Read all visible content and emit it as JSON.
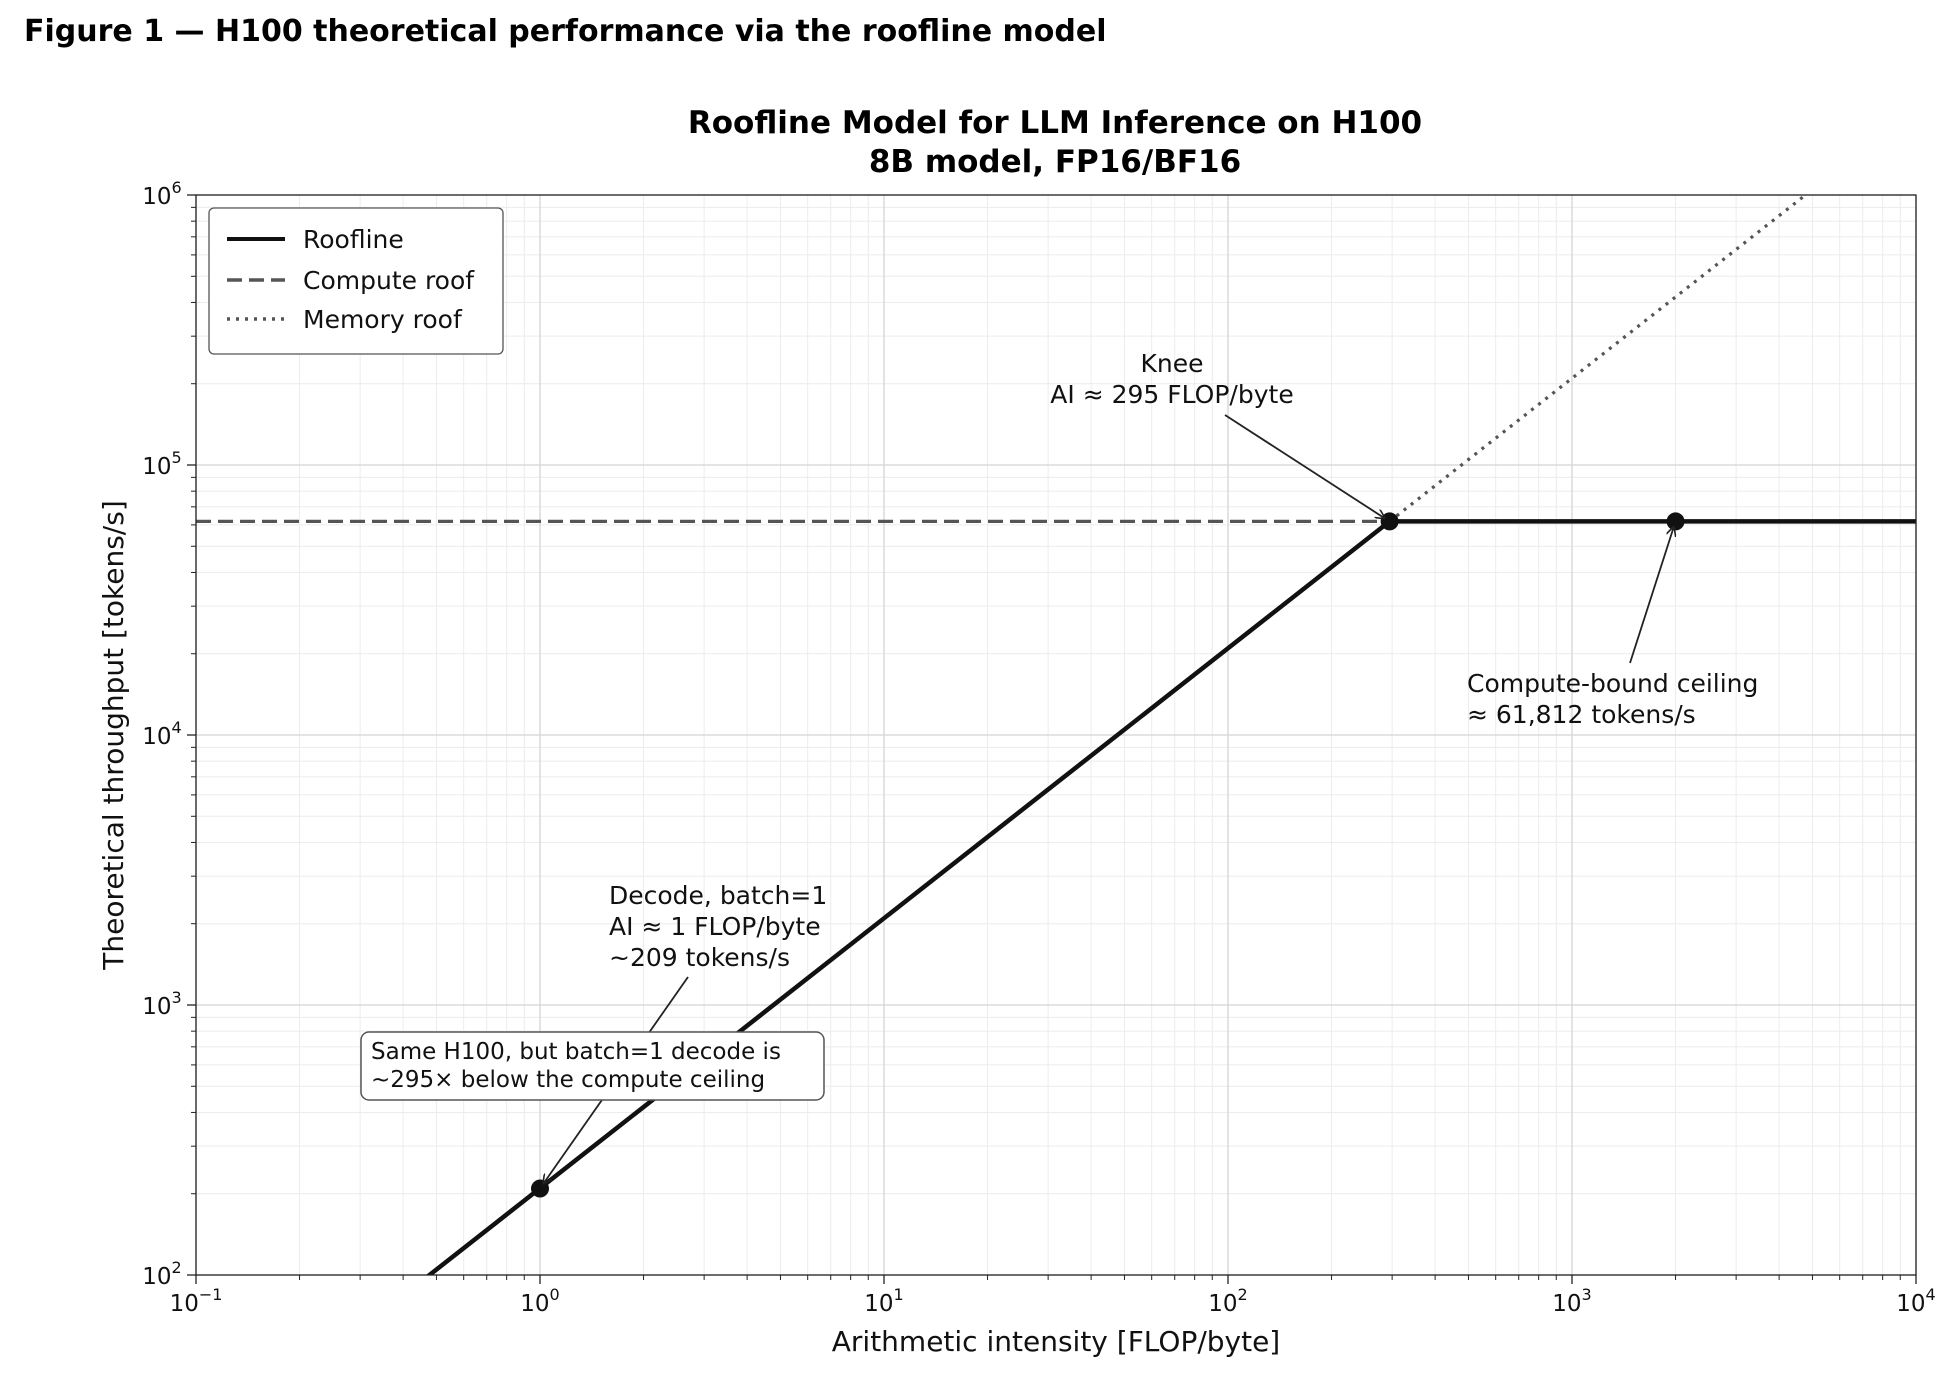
{
  "figure_title": "Figure 1 — H100 theoretical performance via the roofline model",
  "chart_data": {
    "type": "line",
    "title": "Roofline Model for LLM Inference on H100",
    "subtitle": "8B model, FP16/BF16",
    "xlabel": "Arithmetic intensity [FLOP/byte]",
    "ylabel": "Theoretical throughput [tokens/s]",
    "xscale": "log",
    "yscale": "log",
    "xlim": [
      0.1,
      10000
    ],
    "ylim": [
      100,
      1000000
    ],
    "x_ticks": [
      {
        "value": 0.1,
        "base": "10",
        "exp": "−1"
      },
      {
        "value": 1,
        "base": "10",
        "exp": "0"
      },
      {
        "value": 10,
        "base": "10",
        "exp": "1"
      },
      {
        "value": 100,
        "base": "10",
        "exp": "2"
      },
      {
        "value": 1000,
        "base": "10",
        "exp": "3"
      },
      {
        "value": 10000,
        "base": "10",
        "exp": "4"
      }
    ],
    "y_ticks": [
      {
        "value": 100,
        "base": "10",
        "exp": "2"
      },
      {
        "value": 1000,
        "base": "10",
        "exp": "3"
      },
      {
        "value": 10000,
        "base": "10",
        "exp": "4"
      },
      {
        "value": 100000,
        "base": "10",
        "exp": "5"
      },
      {
        "value": 1000000,
        "base": "10",
        "exp": "6"
      }
    ],
    "grid": true,
    "legend_position": "top-left",
    "series": [
      {
        "name": "Roofline",
        "style": "solid",
        "color": "#111111",
        "x": [
          0.1,
          295,
          10000
        ],
        "y": [
          20.95,
          61812,
          61812
        ]
      },
      {
        "name": "Compute roof",
        "style": "dashed",
        "color": "#555555",
        "x": [
          0.1,
          295
        ],
        "y": [
          61812,
          61812
        ]
      },
      {
        "name": "Memory roof",
        "style": "dotted",
        "color": "#555555",
        "x": [
          295,
          10000
        ],
        "y": [
          61812,
          2095322
        ]
      }
    ],
    "points": [
      {
        "x": 1,
        "y": 209
      },
      {
        "x": 295,
        "y": 61812
      },
      {
        "x": 2000,
        "y": 61812
      }
    ],
    "annotations": [
      {
        "lines": [
          "Knee",
          "AI ≈ 295 FLOP/byte"
        ],
        "x": 295,
        "y": 61812,
        "align": "center"
      },
      {
        "lines": [
          "Compute-bound ceiling",
          "≈ 61,812 tokens/s"
        ],
        "x": 2000,
        "y": 61812,
        "align": "left"
      },
      {
        "lines": [
          "Decode, batch=1",
          "AI ≈ 1 FLOP/byte",
          "~209 tokens/s"
        ],
        "x": 1,
        "y": 209,
        "align": "left"
      }
    ],
    "callout_box": [
      "Same H100, but batch=1 decode is",
      "~295× below the compute ceiling"
    ]
  }
}
